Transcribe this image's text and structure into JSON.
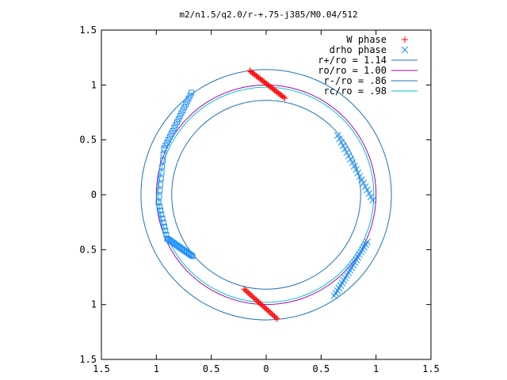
{
  "chart_data": {
    "type": "scatter",
    "title": "m2/n1.5/q2.0/r-+.75-j385/M0.04/512",
    "xlabel": "",
    "ylabel": "",
    "xlim": [
      -1.5,
      1.5
    ],
    "ylim": [
      -1.5,
      1.5
    ],
    "x_ticks": [
      {
        "value": -1.5,
        "label": "1.5"
      },
      {
        "value": -1.0,
        "label": "1"
      },
      {
        "value": -0.5,
        "label": "0.5"
      },
      {
        "value": 0,
        "label": "0"
      },
      {
        "value": 0.5,
        "label": "0.5"
      },
      {
        "value": 1.0,
        "label": "1"
      },
      {
        "value": 1.5,
        "label": "1.5"
      }
    ],
    "y_ticks": [
      {
        "value": 1.5,
        "label": "1.5"
      },
      {
        "value": 1.0,
        "label": "1"
      },
      {
        "value": 0.5,
        "label": "0.5"
      },
      {
        "value": 0,
        "label": "0"
      },
      {
        "value": -0.5,
        "label": "0.5"
      },
      {
        "value": -1.0,
        "label": "1"
      },
      {
        "value": -1.5,
        "label": "1.5"
      }
    ],
    "grid": false,
    "legend_position": "top-right",
    "series": [
      {
        "name": "W phase",
        "marker": "plus",
        "color": "#ff0000",
        "segments": [
          {
            "from": [
              -0.15,
              1.13
            ],
            "to": [
              0.17,
              0.88
            ],
            "n": 28
          },
          {
            "from": [
              -0.2,
              -0.86
            ],
            "to": [
              0.1,
              -1.13
            ],
            "n": 26
          }
        ]
      },
      {
        "name": "drho phase",
        "marker": "cross",
        "color": "#1e90ff",
        "segments": [
          {
            "from": [
              0.65,
              0.54
            ],
            "to": [
              0.97,
              -0.05
            ],
            "n": 20
          },
          {
            "from": [
              0.92,
              -0.43
            ],
            "to": [
              0.62,
              -0.92
            ],
            "n": 22
          }
        ]
      },
      {
        "name": "",
        "marker": "square",
        "color": "#1e90ff",
        "segments": [
          {
            "from": [
              -0.68,
              0.93
            ],
            "to": [
              -0.93,
              0.42
            ],
            "n": 20
          },
          {
            "from": [
              -0.93,
              0.42
            ],
            "to": [
              -0.98,
              -0.07
            ],
            "n": 10
          },
          {
            "from": [
              -0.98,
              -0.07
            ],
            "to": [
              -0.9,
              -0.4
            ],
            "n": 10
          },
          {
            "from": [
              -0.9,
              -0.4
            ],
            "to": [
              -0.67,
              -0.56
            ],
            "n": 22
          }
        ]
      },
      {
        "name": "r+/ro = 1.14",
        "type": "circle",
        "radius": 1.14,
        "color": "#1c75bc"
      },
      {
        "name": "ro/ro = 1.00",
        "type": "circle",
        "radius": 1.0,
        "color": "#aa00aa"
      },
      {
        "name": "r-/ro = .86",
        "type": "circle",
        "radius": 0.86,
        "color": "#1c75bc"
      },
      {
        "name": "rc/ro = .98",
        "type": "circle",
        "radius": 0.98,
        "color": "#00c8c8"
      }
    ]
  }
}
